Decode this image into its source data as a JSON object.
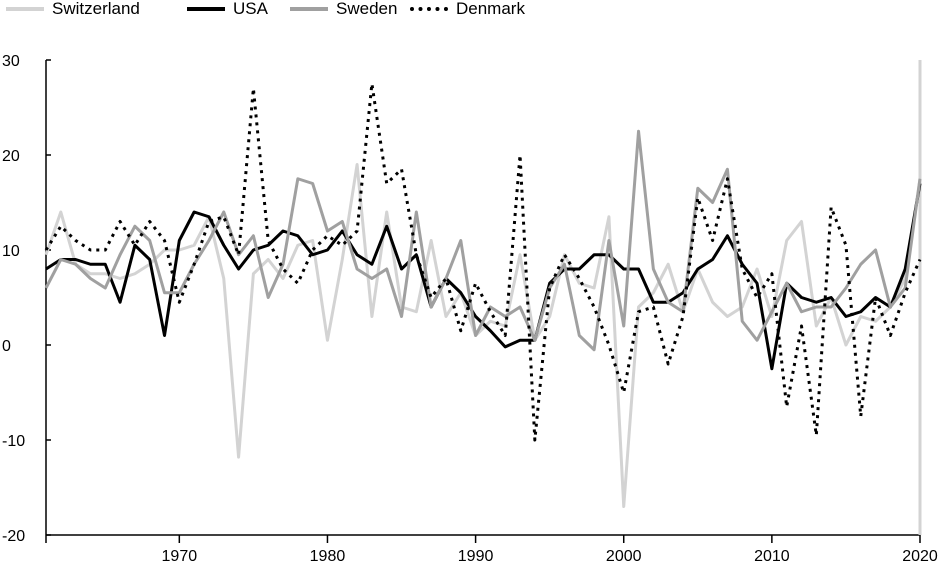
{
  "chart_data": {
    "type": "line",
    "title": "",
    "xlabel": "",
    "ylabel": "",
    "xlim": [
      1961,
      2020
    ],
    "ylim": [
      -20,
      30
    ],
    "x_ticks": [
      1970,
      1980,
      1990,
      2000,
      2010,
      2020
    ],
    "y_ticks": [
      -20,
      -10,
      0,
      10,
      20,
      30
    ],
    "x_tick_labels": [
      "1970",
      "1980",
      "1990",
      "2000",
      "2010",
      "2020"
    ],
    "y_tick_labels": [
      "-20",
      "-10",
      "0",
      "10",
      "20",
      "30"
    ],
    "grid": false,
    "legend_position": "top-left",
    "x": [
      1961,
      1962,
      1963,
      1964,
      1965,
      1966,
      1967,
      1968,
      1969,
      1970,
      1971,
      1972,
      1973,
      1974,
      1975,
      1976,
      1977,
      1978,
      1979,
      1980,
      1981,
      1982,
      1983,
      1984,
      1985,
      1986,
      1987,
      1988,
      1989,
      1990,
      1991,
      1992,
      1993,
      1994,
      1995,
      1996,
      1997,
      1998,
      1999,
      2000,
      2001,
      2002,
      2003,
      2004,
      2005,
      2006,
      2007,
      2008,
      2009,
      2010,
      2011,
      2012,
      2013,
      2014,
      2015,
      2016,
      2017,
      2018,
      2019,
      2020
    ],
    "series": [
      {
        "name": "Switzerland",
        "color": "#d3d3d3",
        "dash": "solid",
        "width": 3,
        "values": [
          9.5,
          14,
          8.5,
          7.5,
          7.5,
          7,
          7.5,
          8.5,
          10,
          10,
          10.5,
          13.5,
          7,
          -11.8,
          7.5,
          9,
          7,
          10.5,
          11,
          0.5,
          9,
          19,
          3,
          14,
          4,
          3.5,
          11,
          3,
          5.5,
          1,
          2.5,
          2,
          9.5,
          0.5,
          3,
          9.5,
          6.5,
          6,
          13.5,
          -17,
          4,
          5.5,
          8.5,
          3.5,
          8,
          4.5,
          3,
          4,
          8,
          3,
          11,
          13,
          2,
          5,
          0,
          3,
          2.5,
          4,
          7,
          17.5
        ]
      },
      {
        "name": "USA",
        "color": "#000000",
        "dash": "solid",
        "width": 3,
        "values": [
          8,
          9,
          9,
          8.5,
          8.5,
          4.5,
          10.5,
          9,
          1,
          11,
          14,
          13.5,
          10.5,
          8,
          10,
          10.5,
          12,
          11.5,
          9.5,
          10,
          12,
          9.5,
          8.5,
          12.5,
          8,
          9.5,
          4,
          7,
          5.5,
          3,
          1.5,
          -0.2,
          0.5,
          0.5,
          6.5,
          8,
          8,
          9.5,
          9.5,
          8,
          8,
          4.5,
          4.5,
          5.5,
          8,
          9,
          11.5,
          8.5,
          6.5,
          -2.5,
          6.5,
          5,
          4.5,
          5,
          3,
          3.5,
          5,
          4,
          8,
          17
        ]
      },
      {
        "name": "Sweden",
        "color": "#a0a0a0",
        "dash": "solid",
        "width": 3,
        "values": [
          6,
          9,
          8.5,
          7,
          6,
          9.5,
          12.5,
          11,
          5.5,
          5.5,
          8.5,
          11,
          14,
          9.5,
          11.5,
          5,
          8.5,
          17.5,
          17,
          12,
          13,
          8,
          7,
          8,
          3,
          14,
          4,
          7,
          11,
          1,
          4,
          3,
          4,
          0.5,
          6,
          8.5,
          1,
          -0.5,
          11,
          2,
          22.5,
          8,
          4.5,
          3.5,
          16.5,
          15,
          18.5,
          2.5,
          0.5,
          3.5,
          6.5,
          3.5,
          4,
          4,
          6,
          8.5,
          10,
          4,
          6,
          17.5
        ]
      },
      {
        "name": "Denmark",
        "color": "#000000",
        "dash": "dotted",
        "width": 3,
        "values": [
          10,
          12.5,
          11,
          10,
          10,
          13,
          10.5,
          13,
          11,
          4.5,
          8.5,
          13,
          13.5,
          9.5,
          27,
          11,
          8,
          6.5,
          10,
          11.5,
          10.5,
          12,
          27.5,
          17,
          18.5,
          9.5,
          5,
          7,
          1.5,
          6.5,
          3.5,
          1,
          20,
          -10,
          6,
          9.5,
          7,
          4,
          0,
          -5,
          3.5,
          4,
          -2,
          3,
          15.5,
          11,
          17.5,
          8,
          5,
          7.5,
          -6.5,
          2,
          -9.5,
          14.5,
          10.5,
          -7.5,
          5,
          1,
          5.5,
          9
        ]
      }
    ]
  }
}
